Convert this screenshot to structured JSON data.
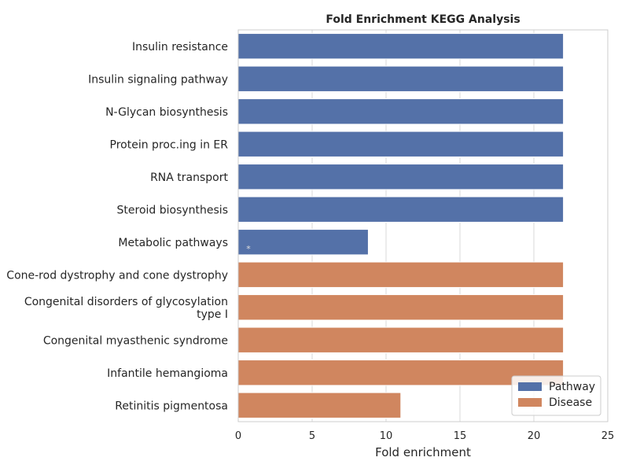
{
  "chart_data": {
    "type": "bar",
    "orientation": "horizontal",
    "title": "Fold Enrichment KEGG Analysis",
    "xlabel": "Fold enrichment",
    "ylabel": "",
    "xlim": [
      0,
      25
    ],
    "xticks": [
      "0",
      "5",
      "10",
      "15",
      "20",
      "25"
    ],
    "grid": true,
    "legend_placement": "bottom-right",
    "categories": [
      "Insulin resistance",
      "Insulin signaling pathway",
      "N-Glycan biosynthesis",
      "Protein proc.ing in ER",
      "RNA transport",
      "Steroid biosynthesis",
      "Metabolic pathways",
      "Cone-rod dystrophy and cone dystrophy",
      "Congenital disorders of glycosylation type I",
      "Congenital myasthenic syndrome",
      "Infantile hemangioma",
      "Retinitis pigmentosa"
    ],
    "category_lines": [
      [
        "Insulin resistance"
      ],
      [
        "Insulin signaling pathway"
      ],
      [
        "N-Glycan biosynthesis"
      ],
      [
        "Protein proc.ing in ER"
      ],
      [
        "RNA transport"
      ],
      [
        "Steroid biosynthesis"
      ],
      [
        "Metabolic pathways"
      ],
      [
        "Cone-rod dystrophy and cone dystrophy"
      ],
      [
        "Congenital disorders of glycosylation",
        "type I"
      ],
      [
        "Congenital myasthenic syndrome"
      ],
      [
        "Infantile hemangioma"
      ],
      [
        "Retinitis pigmentosa"
      ]
    ],
    "values": [
      22,
      22,
      22,
      22,
      22,
      22,
      8.8,
      22,
      22,
      22,
      22,
      11
    ],
    "groups": [
      "Pathway",
      "Pathway",
      "Pathway",
      "Pathway",
      "Pathway",
      "Pathway",
      "Pathway",
      "Disease",
      "Disease",
      "Disease",
      "Disease",
      "Disease"
    ],
    "series": [
      {
        "name": "Pathway",
        "color": "#5471a8"
      },
      {
        "name": "Disease",
        "color": "#d0865f"
      }
    ],
    "annotations": [
      {
        "category": "Metabolic pathways",
        "text": "*"
      }
    ]
  }
}
